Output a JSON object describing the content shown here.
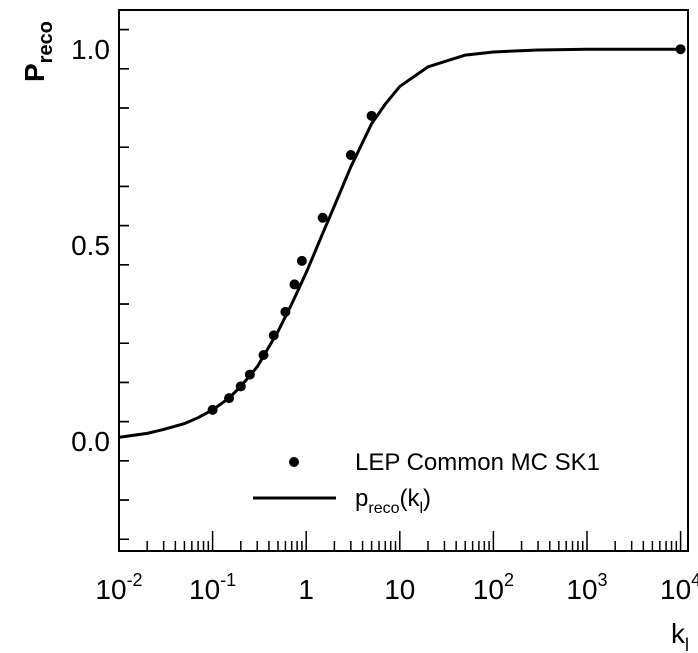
{
  "chart_data": {
    "type": "scatter",
    "xscale": "log",
    "xlim": [
      0.01,
      12000
    ],
    "ylim": [
      -0.28,
      1.1
    ],
    "xlabel": {
      "main": "k",
      "sub": "l"
    },
    "ylabel": {
      "main": "P",
      "sub": "reco"
    },
    "x_ticks": [
      {
        "value": 0.01,
        "base": "10",
        "exp": "-2"
      },
      {
        "value": 0.1,
        "base": "10",
        "exp": "-1"
      },
      {
        "value": 1,
        "base": "1",
        "exp": ""
      },
      {
        "value": 10,
        "base": "10",
        "exp": ""
      },
      {
        "value": 100,
        "base": "10",
        "exp": "2"
      },
      {
        "value": 1000,
        "base": "10",
        "exp": "3"
      },
      {
        "value": 10000,
        "base": "10",
        "exp": "4"
      }
    ],
    "y_ticks": [
      {
        "value": 0.0,
        "label": "0.0"
      },
      {
        "value": 0.5,
        "label": "0.5"
      },
      {
        "value": 1.0,
        "label": "1.0"
      }
    ],
    "series": [
      {
        "name": "LEP Common MC SK1",
        "kind": "points",
        "x": [
          0.1,
          0.15,
          0.2,
          0.25,
          0.35,
          0.45,
          0.6,
          0.75,
          0.9,
          1.5,
          3.0,
          5.0,
          10000
        ],
        "y": [
          0.08,
          0.11,
          0.14,
          0.17,
          0.22,
          0.27,
          0.33,
          0.4,
          0.46,
          0.57,
          0.73,
          0.83,
          1.0
        ]
      },
      {
        "name_main": "p",
        "name_sub": "reco",
        "name_args_open": "(k",
        "name_args_sub": "l",
        "name_args_close": ")",
        "kind": "line",
        "x": [
          0.01,
          0.02,
          0.03,
          0.05,
          0.07,
          0.1,
          0.15,
          0.2,
          0.3,
          0.5,
          0.7,
          1.0,
          1.5,
          2.0,
          3.0,
          5.0,
          7.0,
          10,
          20,
          50,
          100,
          300,
          1000,
          10000
        ],
        "y": [
          0.01,
          0.02,
          0.03,
          0.045,
          0.06,
          0.08,
          0.11,
          0.14,
          0.19,
          0.28,
          0.35,
          0.43,
          0.53,
          0.6,
          0.7,
          0.81,
          0.86,
          0.905,
          0.955,
          0.985,
          0.993,
          0.998,
          1.0,
          1.0
        ]
      }
    ],
    "grid": false,
    "legend_position": "bottom-right"
  }
}
